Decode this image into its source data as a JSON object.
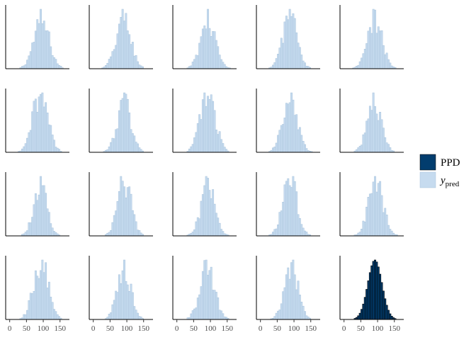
{
  "chart_data": {
    "type": "bar",
    "kind": "histogram-facets",
    "facet_grid": "4x5",
    "shared_x_axis": true,
    "xlim": [
      -12,
      178
    ],
    "x_ticks": [
      0,
      50,
      100,
      150
    ],
    "x_tick_labels": [
      "0",
      "50",
      "100",
      "150"
    ],
    "grid": false,
    "y_axis": "hidden",
    "legend_position": "right",
    "legend": [
      {
        "key": "PPD",
        "label": "PPD",
        "color": "#023d6e"
      },
      {
        "key": "y_pred",
        "label_main": "y",
        "label_sub": "pred",
        "color": "#c6dbef"
      }
    ],
    "colors": {
      "ypred_fill": "#c6dbef",
      "ypred_edge": "#a7c2db",
      "ppd_fill": "#023d6e",
      "ppd_edge": "#000000"
    },
    "facets": [
      {
        "series": "y_pred",
        "center": 95,
        "sd": 23
      },
      {
        "series": "y_pred",
        "center": 90,
        "sd": 22
      },
      {
        "series": "y_pred",
        "center": 93,
        "sd": 22
      },
      {
        "series": "y_pred",
        "center": 88,
        "sd": 21
      },
      {
        "series": "y_pred",
        "center": 92,
        "sd": 22
      },
      {
        "series": "y_pred",
        "center": 92,
        "sd": 22
      },
      {
        "series": "y_pred",
        "center": 92,
        "sd": 21
      },
      {
        "series": "y_pred",
        "center": 92,
        "sd": 22
      },
      {
        "series": "y_pred",
        "center": 88,
        "sd": 22
      },
      {
        "series": "y_pred",
        "center": 90,
        "sd": 21
      },
      {
        "series": "y_pred",
        "center": 92,
        "sd": 20
      },
      {
        "series": "y_pred",
        "center": 93,
        "sd": 20
      },
      {
        "series": "y_pred",
        "center": 93,
        "sd": 21
      },
      {
        "series": "y_pred",
        "center": 88,
        "sd": 21
      },
      {
        "series": "y_pred",
        "center": 95,
        "sd": 22
      },
      {
        "series": "y_pred",
        "center": 93,
        "sd": 22
      },
      {
        "series": "y_pred",
        "center": 92,
        "sd": 20
      },
      {
        "series": "y_pred",
        "center": 91,
        "sd": 22
      },
      {
        "series": "y_pred",
        "center": 92,
        "sd": 21
      },
      {
        "series": "PPD",
        "center": 92,
        "sd": 21
      }
    ]
  }
}
